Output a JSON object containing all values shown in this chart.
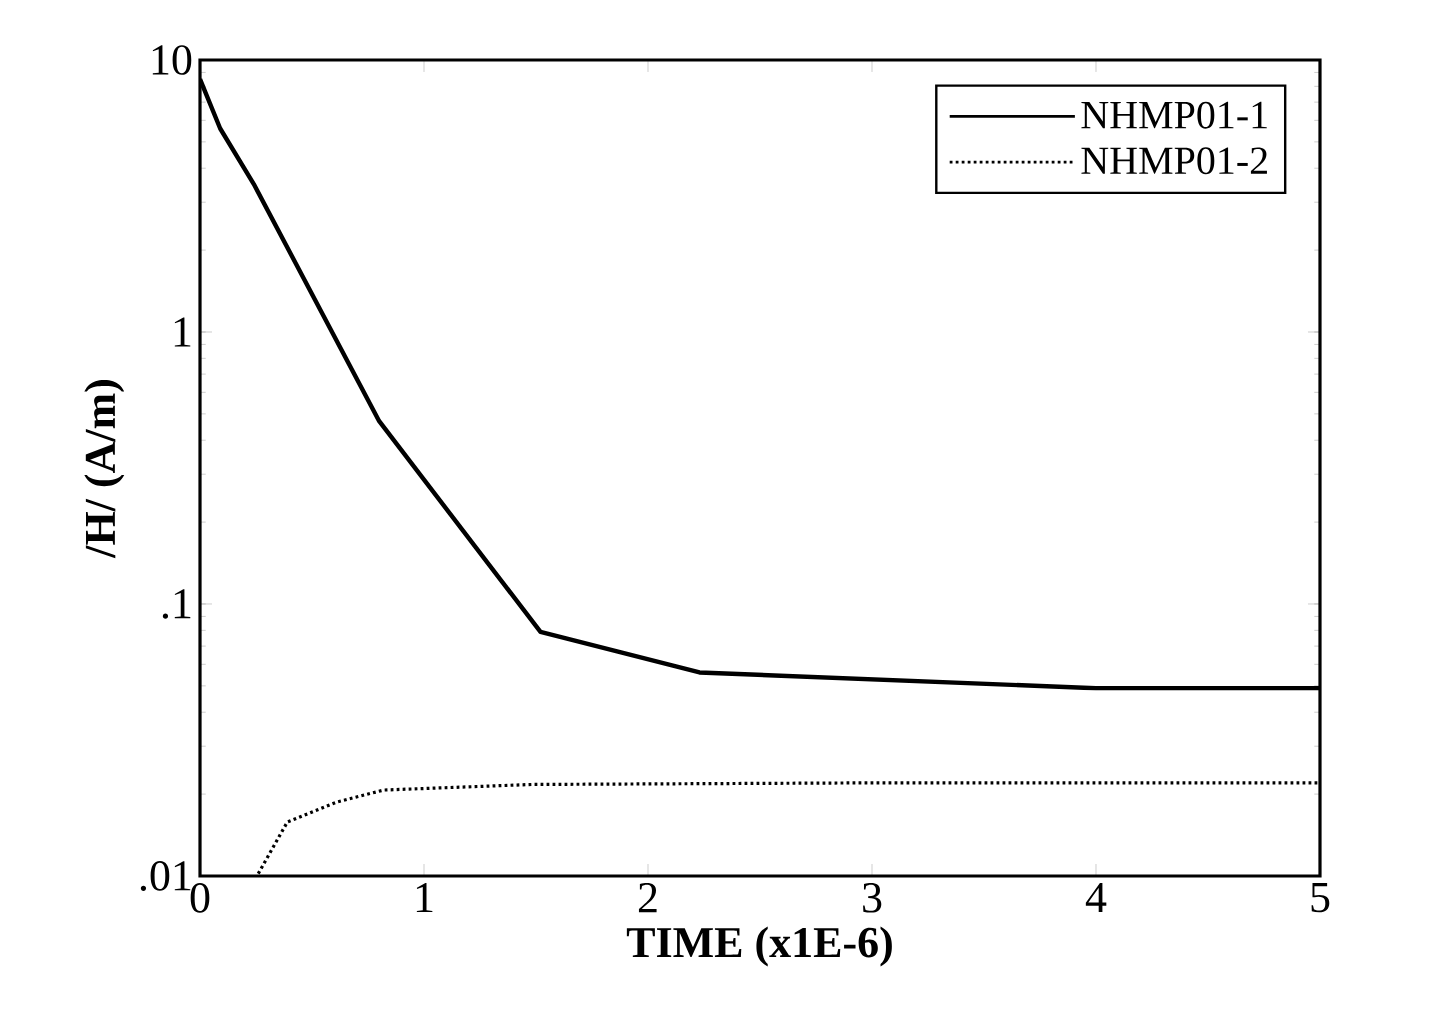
{
  "chart_data": {
    "type": "line",
    "xlabel": "TIME (x1E-6)",
    "ylabel": "/H/  (A/m)",
    "log": "y",
    "xlim": [
      0,
      5
    ],
    "ylim": [
      0.01,
      10
    ],
    "xticks": [
      0,
      1,
      2,
      3,
      4,
      5
    ],
    "yticks": [
      {
        "value": 0.01,
        "label": ".01"
      },
      {
        "value": 0.1,
        "label": ".1"
      },
      {
        "value": 1,
        "label": "1"
      },
      {
        "value": 10,
        "label": "10"
      }
    ],
    "legend": "top right",
    "grid": false,
    "marker": "none",
    "series": [
      {
        "name": "NHMP01-1",
        "color": "#000000",
        "line_style": "solid",
        "x": [
          0,
          0.09,
          0.24,
          0.8,
          1.52,
          2.23,
          4,
          5
        ],
        "values": [
          8.5,
          5.6,
          3.5,
          0.47,
          0.079,
          0.056,
          0.049,
          0.049
        ]
      },
      {
        "name": "NHMP01-2",
        "color": "#000000",
        "line_style": "dotted",
        "x": [
          0.26,
          0.39,
          0.61,
          0.82,
          1.48,
          3,
          5
        ],
        "values": [
          0.0102,
          0.0158,
          0.0187,
          0.0207,
          0.0217,
          0.022,
          0.022
        ]
      }
    ]
  }
}
